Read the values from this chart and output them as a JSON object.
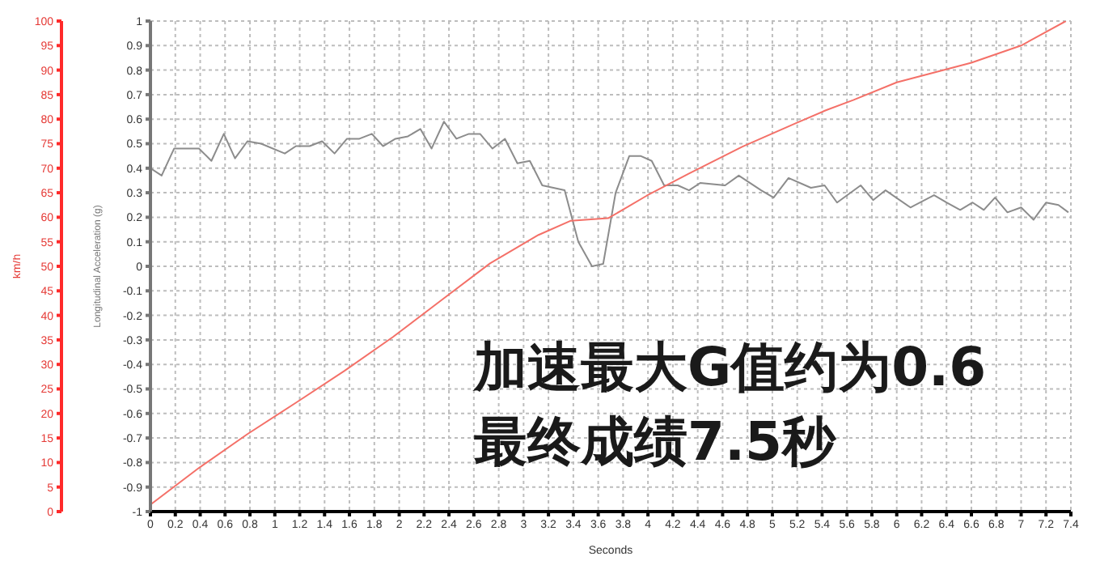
{
  "chart_data": {
    "type": "line",
    "xlabel": "Seconds",
    "ylabel": "Longitudinal Acceleration (g)",
    "y2label": "km/h",
    "xlim": [
      0,
      7.4
    ],
    "xticks": [
      0,
      0.2,
      0.4,
      0.6,
      0.8,
      1,
      1.2,
      1.4,
      1.6,
      1.8,
      2,
      2.2,
      2.4,
      2.6,
      2.8,
      3,
      3.2,
      3.4,
      3.6,
      3.8,
      4,
      4.2,
      4.4,
      4.6,
      4.8,
      5,
      5.2,
      5.4,
      5.6,
      5.8,
      6,
      6.2,
      6.4,
      6.6,
      6.8,
      7,
      7.2,
      7.4
    ],
    "ylim": [
      -1,
      1
    ],
    "yticks": [
      -1,
      -0.9,
      -0.8,
      -0.7,
      -0.6,
      -0.5,
      -0.4,
      -0.3,
      -0.2,
      -0.1,
      0,
      0.1,
      0.2,
      0.3,
      0.4,
      0.5,
      0.6,
      0.7,
      0.8,
      0.9,
      1
    ],
    "y2lim": [
      0,
      100
    ],
    "y2ticks": [
      0,
      5,
      10,
      15,
      20,
      25,
      30,
      35,
      40,
      45,
      50,
      55,
      60,
      65,
      70,
      75,
      80,
      85,
      90,
      95,
      100
    ],
    "grid": true,
    "marker": "none",
    "line_style": "solid",
    "series": [
      {
        "color": "#8c8c8c",
        "axis": "y",
        "x": [
          0,
          0.09,
          0.19,
          0.39,
          0.49,
          0.59,
          0.68,
          0.78,
          0.89,
          1.08,
          1.17,
          1.28,
          1.38,
          1.48,
          1.58,
          1.68,
          1.78,
          1.87,
          1.97,
          2.07,
          2.17,
          2.26,
          2.36,
          2.46,
          2.56,
          2.65,
          2.75,
          2.85,
          2.95,
          3.05,
          3.15,
          3.33,
          3.44,
          3.55,
          3.64,
          3.74,
          3.85,
          3.94,
          4.03,
          4.13,
          4.24,
          4.33,
          4.42,
          4.62,
          4.73,
          4.91,
          5.01,
          5.13,
          5.31,
          5.42,
          5.52,
          5.71,
          5.81,
          5.91,
          6.11,
          6.3,
          6.4,
          6.51,
          6.61,
          6.7,
          6.79,
          6.89,
          7,
          7.1,
          7.2,
          7.3,
          7.38
        ],
        "values": [
          0.4,
          0.37,
          0.48,
          0.48,
          0.43,
          0.54,
          0.44,
          0.51,
          0.5,
          0.46,
          0.49,
          0.49,
          0.51,
          0.46,
          0.52,
          0.52,
          0.54,
          0.49,
          0.52,
          0.53,
          0.56,
          0.48,
          0.59,
          0.52,
          0.54,
          0.54,
          0.48,
          0.52,
          0.42,
          0.43,
          0.33,
          0.31,
          0.1,
          0,
          0.01,
          0.3,
          0.45,
          0.45,
          0.43,
          0.33,
          0.33,
          0.31,
          0.34,
          0.33,
          0.37,
          0.31,
          0.28,
          0.36,
          0.32,
          0.33,
          0.26,
          0.33,
          0.27,
          0.31,
          0.24,
          0.29,
          0.26,
          0.23,
          0.26,
          0.23,
          0.28,
          0.22,
          0.24,
          0.19,
          0.26,
          0.25,
          0.22
        ]
      },
      {
        "color": "#f47068",
        "axis": "y2",
        "x": [
          0,
          0.39,
          0.78,
          1.17,
          1.56,
          1.95,
          2.34,
          2.73,
          3.12,
          3.38,
          3.68,
          3.85,
          3.99,
          4.33,
          4.76,
          5.19,
          5.43,
          5.65,
          6,
          6.6,
          7,
          7.36
        ],
        "values": [
          1.4,
          8.9,
          15.8,
          22.2,
          28.7,
          35.6,
          43.1,
          50.6,
          56.4,
          59.3,
          59.8,
          62.3,
          64.4,
          68.9,
          74.4,
          79.2,
          81.8,
          83.9,
          87.5,
          91.5,
          95,
          100
        ]
      }
    ],
    "annotations": [
      "加速最大G值约为0.6",
      "最终成绩7.5秒"
    ]
  }
}
